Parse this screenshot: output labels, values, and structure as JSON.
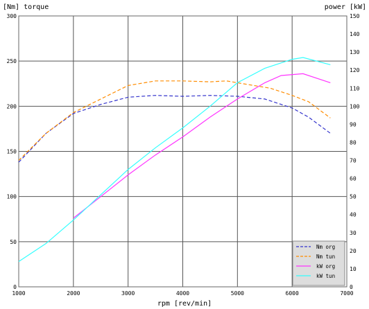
{
  "chart_data": {
    "type": "line",
    "title": "",
    "xlabel": "rpm [rev/min]",
    "ylabel_left": "[Nm] torque",
    "ylabel_right": "power [kW]",
    "xlim": [
      1000,
      7000
    ],
    "ylim_left": [
      0,
      300
    ],
    "ylim_right": [
      0,
      150
    ],
    "x_ticks": [
      "1000",
      "2000",
      "3000",
      "4000",
      "5000",
      "6000",
      "7000"
    ],
    "y_ticks_left": [
      "0",
      "50",
      "100",
      "150",
      "200",
      "250",
      "300"
    ],
    "y_ticks_right": [
      "0",
      "10",
      "20",
      "30",
      "40",
      "50",
      "60",
      "70",
      "80",
      "90",
      "100",
      "110",
      "120",
      "130",
      "140",
      "150"
    ],
    "grid": true,
    "legend_position": "bottom-right",
    "series": [
      {
        "name": "Nm org",
        "axis": "left",
        "style": "dashed",
        "color": "#3333cc",
        "x": [
          1000,
          1500,
          2000,
          2500,
          3000,
          3500,
          4000,
          4500,
          5000,
          5500,
          6000,
          6300,
          6700
        ],
        "y": [
          138,
          170,
          192,
          202,
          210,
          212,
          211,
          212,
          211,
          208,
          198,
          188,
          170
        ]
      },
      {
        "name": "Nm tun",
        "axis": "left",
        "style": "dashed",
        "color": "#ff8c00",
        "x": [
          1000,
          1500,
          2000,
          2500,
          3000,
          3500,
          4000,
          4500,
          4800,
          5200,
          5600,
          6000,
          6300,
          6700
        ],
        "y": [
          140,
          170,
          193,
          208,
          223,
          228,
          228,
          227,
          228,
          224,
          220,
          212,
          205,
          187
        ]
      },
      {
        "name": "kW org",
        "axis": "right",
        "style": "solid",
        "color": "#ff33ff",
        "x": [
          2000,
          2500,
          3000,
          3500,
          4000,
          4500,
          5000,
          5500,
          5800,
          6200,
          6700
        ],
        "y": [
          38,
          50,
          62,
          73,
          83,
          94,
          104,
          113,
          117,
          118,
          113
        ]
      },
      {
        "name": "kW tun",
        "axis": "right",
        "style": "solid",
        "color": "#33ffff",
        "x": [
          1000,
          1500,
          2000,
          2500,
          3000,
          3500,
          4000,
          4500,
          5000,
          5500,
          6000,
          6200,
          6700
        ],
        "y": [
          14,
          24,
          37,
          51,
          65,
          77,
          88,
          100,
          113,
          121,
          126,
          127,
          123
        ]
      }
    ]
  }
}
